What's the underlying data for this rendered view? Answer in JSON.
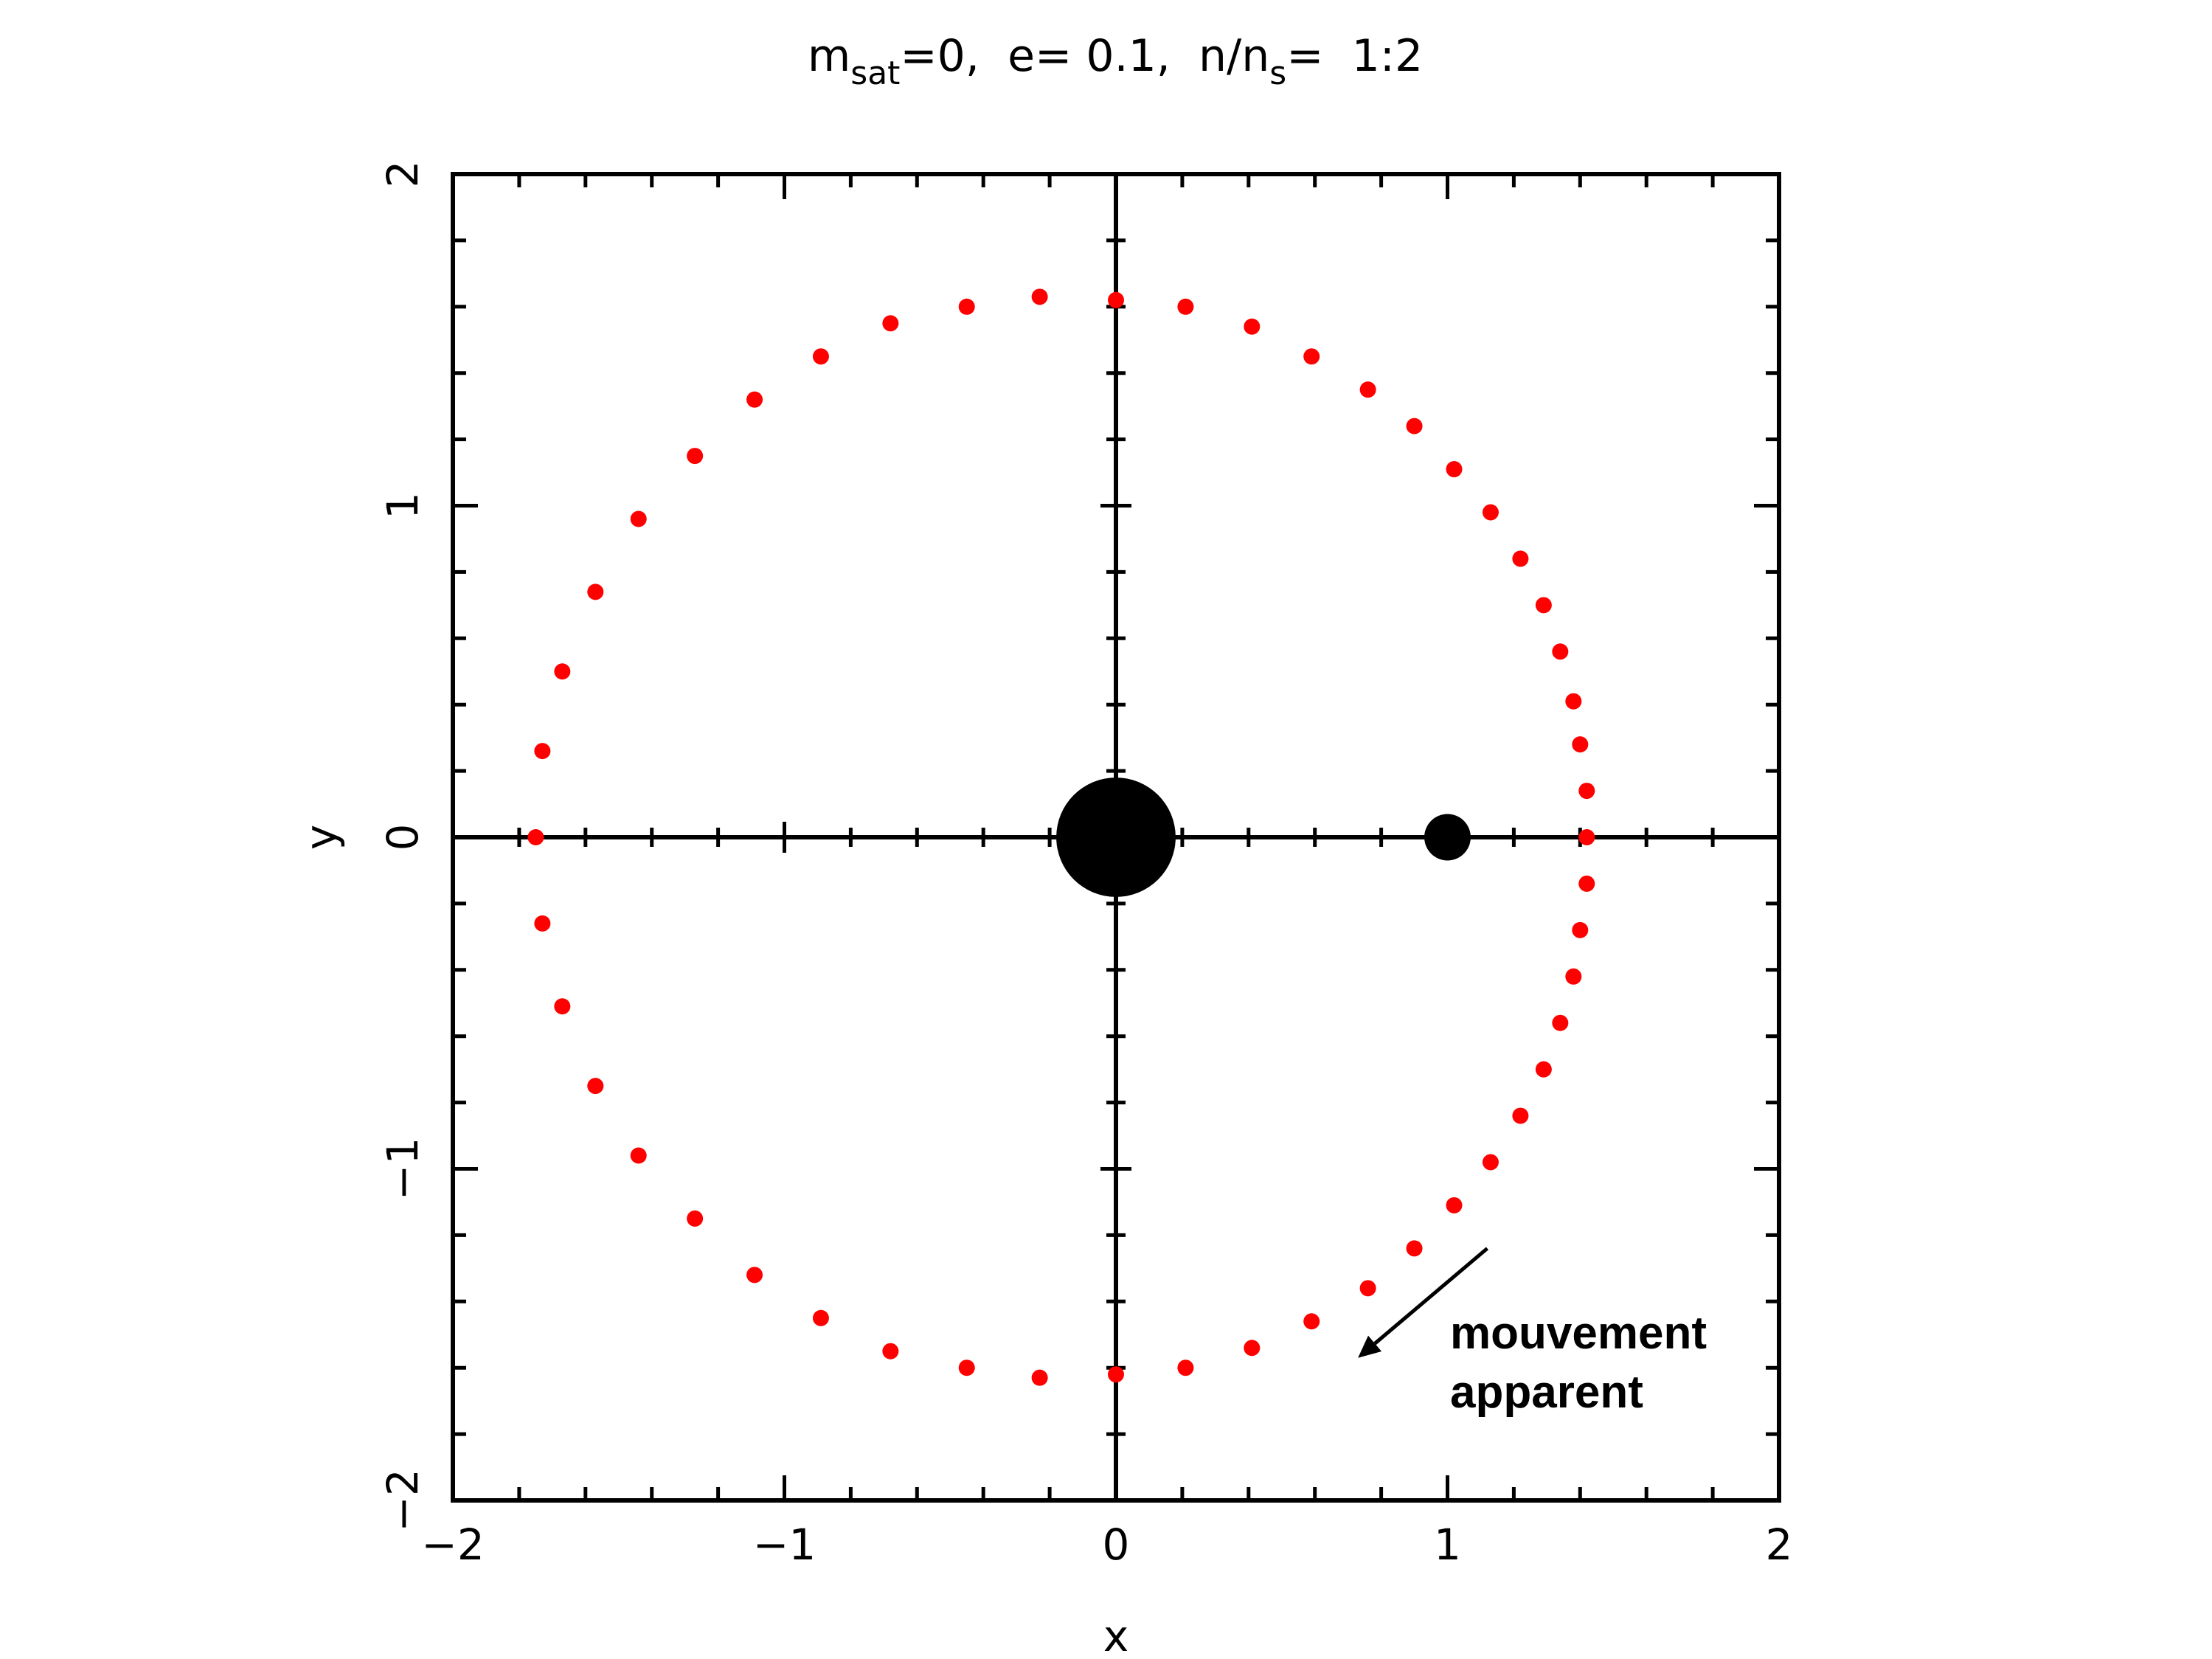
{
  "chart_data": {
    "type": "scatter",
    "title": {
      "m": "m",
      "m_sub": "sat",
      "m_rest": "=0,  e= 0.1,  n/n",
      "n_sub": "s",
      "n_rest": "=  1:2"
    },
    "xlabel": "x",
    "ylabel": "y",
    "xlim": [
      -2,
      2
    ],
    "ylim": [
      -2,
      2
    ],
    "x_ticks": [
      {
        "value": -2,
        "label": "−2"
      },
      {
        "value": -1,
        "label": "−1"
      },
      {
        "value": 0,
        "label": "0"
      },
      {
        "value": 1,
        "label": "1"
      },
      {
        "value": 2,
        "label": "2"
      }
    ],
    "y_ticks": [
      {
        "value": -2,
        "label": "−2"
      },
      {
        "value": -1,
        "label": "−1"
      },
      {
        "value": 0,
        "label": "0"
      },
      {
        "value": 1,
        "label": "1"
      },
      {
        "value": 2,
        "label": "2"
      }
    ],
    "minor_tick_step": 0.2,
    "grid": false,
    "axes_through_origin": true,
    "bodies": [
      {
        "name": "central-body",
        "x": 0,
        "y": 0,
        "radius": 0.18,
        "color": "#000000"
      },
      {
        "name": "satellite",
        "x": 1,
        "y": 0,
        "radius": 0.07,
        "color": "#000000"
      }
    ],
    "series": [
      {
        "color": "#ff0000",
        "points": [
          [
            1.42,
            0.0
          ],
          [
            1.42,
            0.14
          ],
          [
            1.4,
            0.28
          ],
          [
            1.38,
            0.41
          ],
          [
            1.34,
            0.56
          ],
          [
            1.29,
            0.7
          ],
          [
            1.22,
            0.84
          ],
          [
            1.13,
            0.98
          ],
          [
            1.02,
            1.11
          ],
          [
            0.9,
            1.24
          ],
          [
            0.76,
            1.35
          ],
          [
            0.59,
            1.45
          ],
          [
            0.41,
            1.54
          ],
          [
            0.21,
            1.6
          ],
          [
            0.0,
            1.62
          ],
          [
            -0.23,
            1.63
          ],
          [
            -0.45,
            1.6
          ],
          [
            -0.68,
            1.55
          ],
          [
            -0.89,
            1.45
          ],
          [
            -1.09,
            1.32
          ],
          [
            -1.27,
            1.15
          ],
          [
            -1.44,
            0.96
          ],
          [
            -1.57,
            0.74
          ],
          [
            -1.67,
            0.5
          ],
          [
            -1.73,
            0.26
          ],
          [
            -1.75,
            0.0
          ],
          [
            -1.73,
            -0.26
          ],
          [
            -1.67,
            -0.51
          ],
          [
            -1.57,
            -0.75
          ],
          [
            -1.44,
            -0.96
          ],
          [
            -1.27,
            -1.15
          ],
          [
            -1.09,
            -1.32
          ],
          [
            -0.89,
            -1.45
          ],
          [
            -0.68,
            -1.55
          ],
          [
            -0.45,
            -1.6
          ],
          [
            -0.23,
            -1.63
          ],
          [
            0.0,
            -1.62
          ],
          [
            0.21,
            -1.6
          ],
          [
            0.41,
            -1.54
          ],
          [
            0.59,
            -1.46
          ],
          [
            0.76,
            -1.36
          ],
          [
            0.9,
            -1.24
          ],
          [
            1.02,
            -1.11
          ],
          [
            1.13,
            -0.98
          ],
          [
            1.22,
            -0.84
          ],
          [
            1.29,
            -0.7
          ],
          [
            1.34,
            -0.56
          ],
          [
            1.38,
            -0.42
          ],
          [
            1.4,
            -0.28
          ],
          [
            1.42,
            -0.14
          ]
        ]
      }
    ],
    "annotation": {
      "line1": "mouvement",
      "line2": "apparent",
      "arrow_from": [
        1.12,
        -1.24
      ],
      "arrow_to": [
        0.73,
        -1.57
      ]
    }
  }
}
